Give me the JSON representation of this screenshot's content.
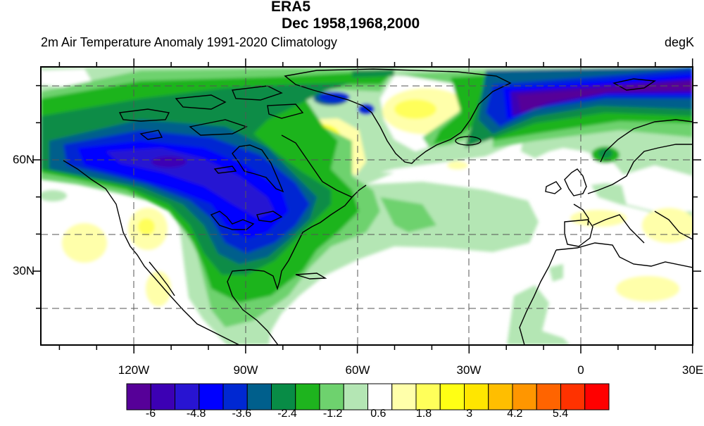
{
  "title": {
    "line1": "ERA5",
    "line2": "Dec 1958,1968,2000"
  },
  "subtitle_left": "2m Air Temperature Anomaly  1991-2020 Climatology",
  "subtitle_right": "degK",
  "map": {
    "projection": "cylindrical equidistant",
    "lon_range": [
      "145W",
      "30E"
    ],
    "lat_range": [
      "10N",
      "85N"
    ],
    "lon_labels": [
      "120W",
      "90W",
      "60W",
      "30W",
      "0",
      "30E"
    ],
    "lat_labels": [
      "60N",
      "30N"
    ],
    "gridlines": "dashed"
  },
  "colorbar": {
    "labels": [
      "-6",
      "-4.8",
      "-3.6",
      "-2.4",
      "-1.2",
      "0.6",
      "1.8",
      "3",
      "4.2",
      "5.4"
    ],
    "colors": [
      "#560098",
      "#3c00b4",
      "#2814d2",
      "#0000ff",
      "#0028d2",
      "#005f8c",
      "#088c46",
      "#1eb41e",
      "#6ed26e",
      "#b4e6b4",
      "#ffffff",
      "#ffffaa",
      "#ffff5a",
      "#ffff14",
      "#ffe600",
      "#ffbe00",
      "#ff9600",
      "#ff6400",
      "#ff3200",
      "#ff0000"
    ]
  }
}
